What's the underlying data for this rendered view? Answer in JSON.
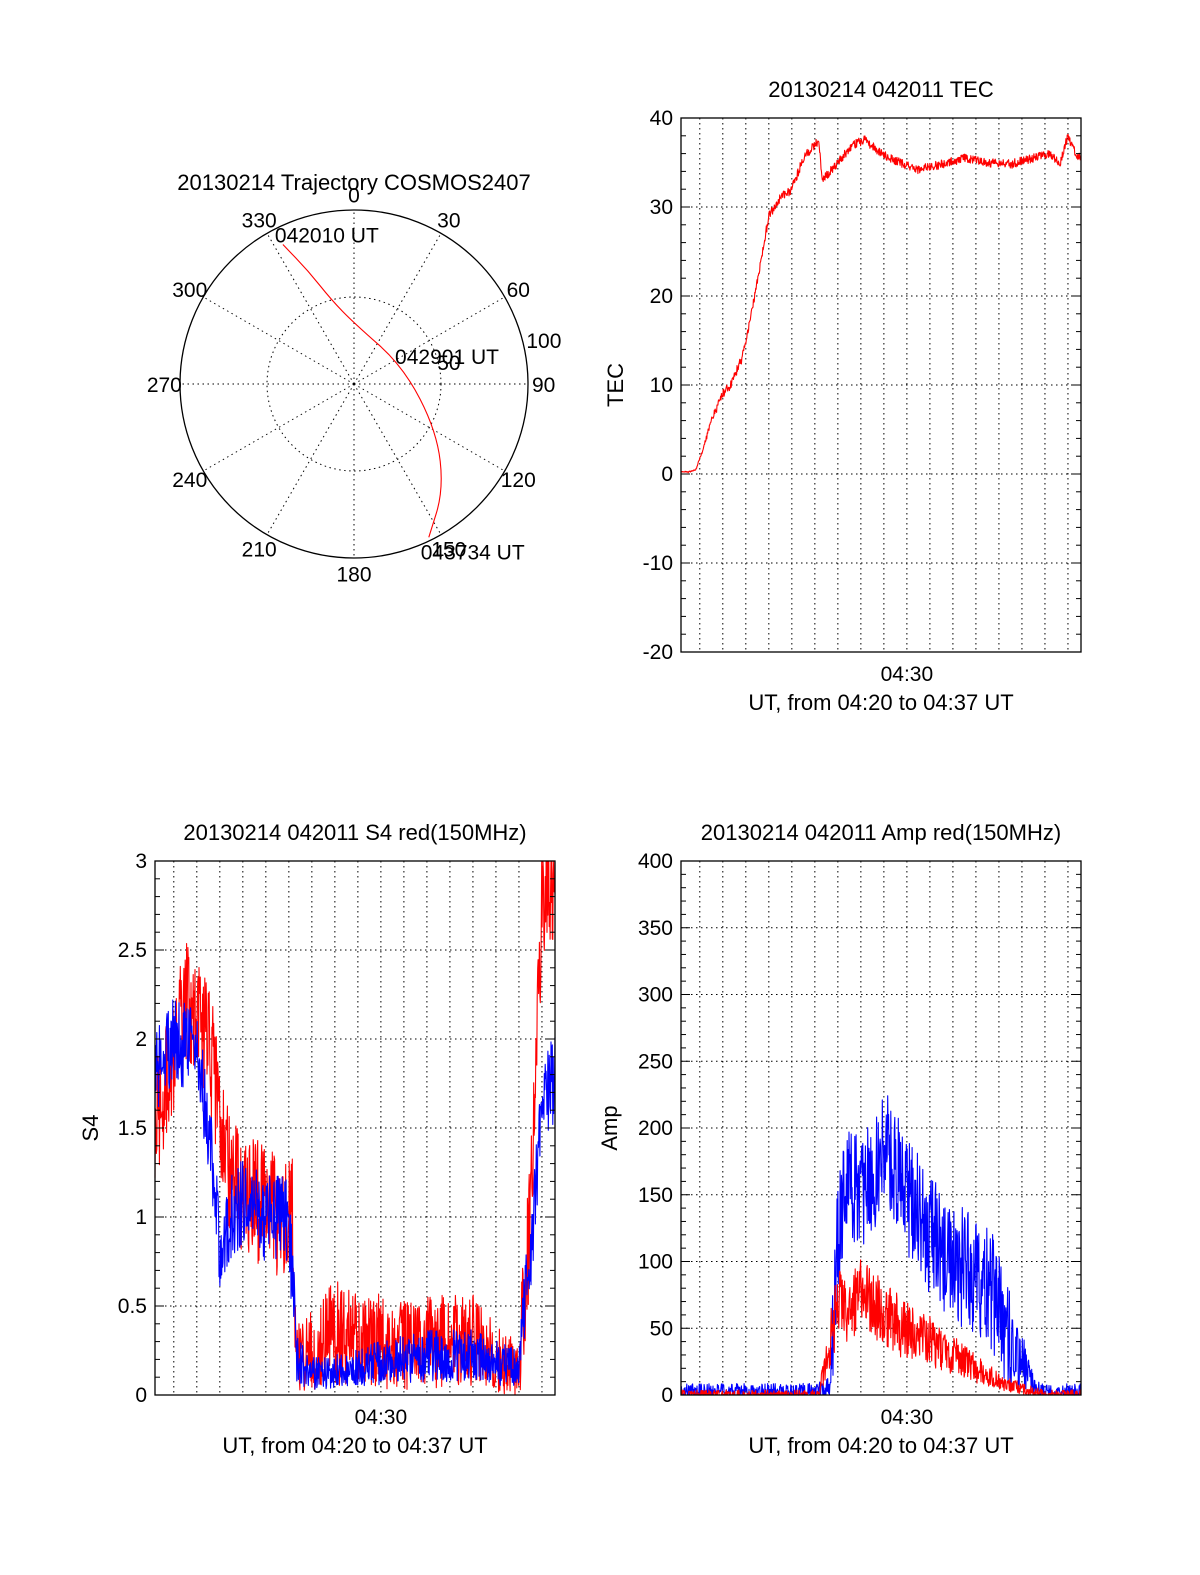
{
  "colors": {
    "red": "#ff0000",
    "blue": "#0000ff",
    "axis": "#000000",
    "background": "#ffffff"
  },
  "chart_data": [
    {
      "type": "polar",
      "title": "20130214 Trajectory COSMOS2407",
      "azimuth_labels": [
        "0",
        "30",
        "60",
        "90",
        "120",
        "150",
        "180",
        "210",
        "240",
        "270",
        "300",
        "330"
      ],
      "radial_labels": [
        "50",
        "100"
      ],
      "rlim": [
        0,
        100
      ],
      "grid": true,
      "series": [
        {
          "color": "#ff0000",
          "points": [
            {
              "az": 333,
              "r": 90
            },
            {
              "az": 338,
              "r": 70
            },
            {
              "az": 345,
              "r": 50
            },
            {
              "az": 0,
              "r": 35
            },
            {
              "az": 70,
              "r": 30
            },
            {
              "az": 120,
              "r": 55
            },
            {
              "az": 140,
              "r": 80
            },
            {
              "az": 154,
              "r": 98
            }
          ]
        }
      ],
      "annotations": [
        {
          "text": "042010 UT",
          "az": 333,
          "r": 90
        },
        {
          "text": "042901 UT",
          "az": 70,
          "r": 30
        },
        {
          "text": "043734 UT",
          "az": 154,
          "r": 98
        }
      ]
    },
    {
      "type": "line",
      "title": "20130214 042011 TEC",
      "xlabel": "UT, from 04:20 to 04:37 UT",
      "ylabel": "TEC",
      "xlim": [
        "04:20:11",
        "04:37:34"
      ],
      "ylim": [
        -20,
        40
      ],
      "x_tick_labels": [
        "04:30"
      ],
      "y_tick_labels": [
        "-20",
        "-10",
        "0",
        "10",
        "20",
        "30",
        "40"
      ],
      "grid": true,
      "series": [
        {
          "color": "#ff0000",
          "noise": 0.5,
          "points": [
            [
              "04:20:11",
              0.3
            ],
            [
              "04:20:30",
              0.2
            ],
            [
              "04:20:50",
              0.5
            ],
            [
              "04:21:10",
              3.0
            ],
            [
              "04:21:30",
              6.0
            ],
            [
              "04:22:00",
              9.0
            ],
            [
              "04:22:20",
              10.0
            ],
            [
              "04:22:50",
              13.0
            ],
            [
              "04:23:15",
              18.0
            ],
            [
              "04:23:40",
              24.0
            ],
            [
              "04:24:00",
              29.0
            ],
            [
              "04:24:30",
              31.0
            ],
            [
              "04:25:00",
              32.0
            ],
            [
              "04:25:30",
              35.5
            ],
            [
              "04:26:10",
              37.5
            ],
            [
              "04:26:20",
              33.0
            ],
            [
              "04:27:00",
              35.0
            ],
            [
              "04:27:40",
              37.0
            ],
            [
              "04:28:10",
              37.5
            ],
            [
              "04:29:00",
              35.8
            ],
            [
              "04:29:40",
              35.0
            ],
            [
              "04:30:30",
              34.2
            ],
            [
              "04:31:30",
              34.8
            ],
            [
              "04:32:30",
              35.5
            ],
            [
              "04:33:30",
              35.0
            ],
            [
              "04:34:30",
              34.8
            ],
            [
              "04:35:30",
              35.5
            ],
            [
              "04:36:10",
              36.0
            ],
            [
              "04:36:40",
              35.0
            ],
            [
              "04:37:00",
              38.0
            ],
            [
              "04:37:20",
              36.0
            ],
            [
              "04:37:34",
              35.5
            ]
          ]
        }
      ]
    },
    {
      "type": "line",
      "title": "20130214 042011 S4 red(150MHz)",
      "xlabel": "UT, from 04:20 to 04:37 UT",
      "ylabel": "S4",
      "xlim": [
        "04:20:11",
        "04:37:34"
      ],
      "ylim": [
        0,
        3
      ],
      "x_tick_labels": [
        "04:30"
      ],
      "y_tick_labels": [
        "0",
        "0.5",
        "1",
        "1.5",
        "2",
        "2.5",
        "3"
      ],
      "grid": true,
      "series": [
        {
          "color": "#ff0000",
          "noise": 0.35,
          "points": [
            [
              "04:20:11",
              1.5
            ],
            [
              "04:21:30",
              2.2
            ],
            [
              "04:22:30",
              2.0
            ],
            [
              "04:23:30",
              1.2
            ],
            [
              "04:24:30",
              1.1
            ],
            [
              "04:25:30",
              1.0
            ],
            [
              "04:26:10",
              1.0
            ],
            [
              "04:26:20",
              0.2
            ],
            [
              "04:27:00",
              0.25
            ],
            [
              "04:28:00",
              0.35
            ],
            [
              "04:29:00",
              0.3
            ],
            [
              "04:30:00",
              0.3
            ],
            [
              "04:31:00",
              0.28
            ],
            [
              "04:32:00",
              0.3
            ],
            [
              "04:33:00",
              0.3
            ],
            [
              "04:34:00",
              0.3
            ],
            [
              "04:35:00",
              0.2
            ],
            [
              "04:36:00",
              0.15
            ],
            [
              "04:36:30",
              1.0
            ],
            [
              "04:37:00",
              2.8
            ],
            [
              "04:37:34",
              2.9
            ]
          ]
        },
        {
          "color": "#0000ff",
          "noise": 0.25,
          "points": [
            [
              "04:20:11",
              1.8
            ],
            [
              "04:21:00",
              2.0
            ],
            [
              "04:22:00",
              1.9
            ],
            [
              "04:22:30",
              1.5
            ],
            [
              "04:23:00",
              0.8
            ],
            [
              "04:23:30",
              1.0
            ],
            [
              "04:24:00",
              1.1
            ],
            [
              "04:25:00",
              1.0
            ],
            [
              "04:26:00",
              1.0
            ],
            [
              "04:26:20",
              0.2
            ],
            [
              "04:27:00",
              0.12
            ],
            [
              "04:28:00",
              0.13
            ],
            [
              "04:29:00",
              0.15
            ],
            [
              "04:30:00",
              0.18
            ],
            [
              "04:31:00",
              0.2
            ],
            [
              "04:32:00",
              0.22
            ],
            [
              "04:33:00",
              0.22
            ],
            [
              "04:34:00",
              0.22
            ],
            [
              "04:35:00",
              0.18
            ],
            [
              "04:36:00",
              0.15
            ],
            [
              "04:36:30",
              0.8
            ],
            [
              "04:37:00",
              1.6
            ],
            [
              "04:37:34",
              1.8
            ]
          ]
        }
      ]
    },
    {
      "type": "line",
      "title": "20130214 042011 Amp red(150MHz)",
      "xlabel": "UT, from 04:20 to 04:37 UT",
      "ylabel": "Amp",
      "xlim": [
        "04:20:11",
        "04:37:34"
      ],
      "ylim": [
        0,
        400
      ],
      "x_tick_labels": [
        "04:30"
      ],
      "y_tick_labels": [
        "0",
        "50",
        "100",
        "150",
        "200",
        "250",
        "300",
        "350",
        "400"
      ],
      "grid": true,
      "series": [
        {
          "color": "#0000ff",
          "noise": 45,
          "points": [
            [
              "04:20:11",
              2
            ],
            [
              "04:26:00",
              2
            ],
            [
              "04:26:40",
              5
            ],
            [
              "04:27:00",
              120
            ],
            [
              "04:27:30",
              160
            ],
            [
              "04:28:00",
              150
            ],
            [
              "04:28:30",
              160
            ],
            [
              "04:29:00",
              190
            ],
            [
              "04:29:30",
              170
            ],
            [
              "04:30:00",
              150
            ],
            [
              "04:31:00",
              120
            ],
            [
              "04:32:00",
              100
            ],
            [
              "04:33:00",
              90
            ],
            [
              "04:34:00",
              70
            ],
            [
              "04:34:40",
              30
            ],
            [
              "04:35:10",
              20
            ],
            [
              "04:35:30",
              5
            ],
            [
              "04:36:00",
              2
            ],
            [
              "04:37:34",
              2
            ]
          ]
        },
        {
          "color": "#ff0000",
          "noise": 25,
          "points": [
            [
              "04:20:11",
              0
            ],
            [
              "04:26:10",
              0
            ],
            [
              "04:26:40",
              40
            ],
            [
              "04:27:00",
              70
            ],
            [
              "04:27:30",
              60
            ],
            [
              "04:28:00",
              80
            ],
            [
              "04:28:30",
              70
            ],
            [
              "04:29:00",
              60
            ],
            [
              "04:30:00",
              50
            ],
            [
              "04:31:00",
              40
            ],
            [
              "04:32:00",
              30
            ],
            [
              "04:33:00",
              20
            ],
            [
              "04:34:00",
              10
            ],
            [
              "04:35:00",
              5
            ],
            [
              "04:36:00",
              0
            ],
            [
              "04:37:34",
              0
            ]
          ]
        }
      ]
    }
  ]
}
